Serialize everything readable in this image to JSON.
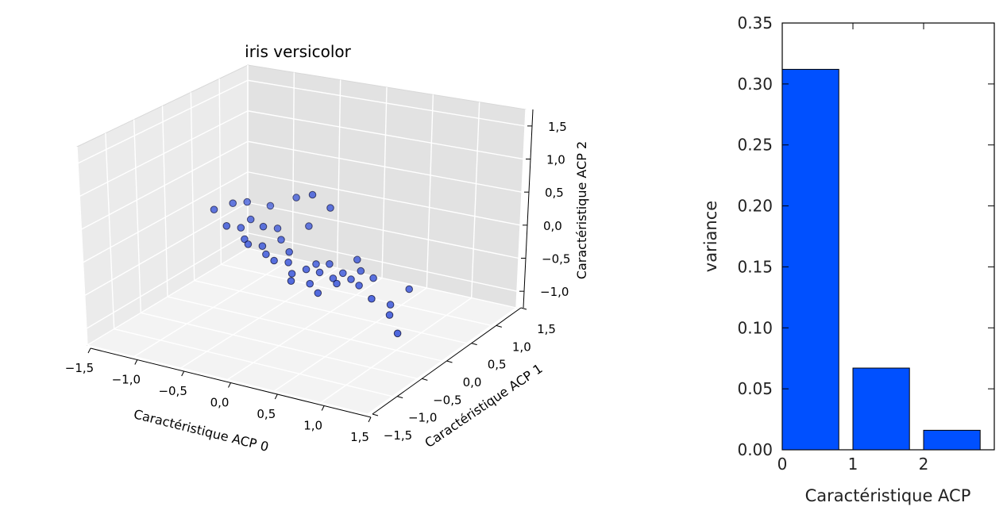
{
  "chart_data": [
    {
      "type": "scatter3d",
      "title": "iris versicolor",
      "xlabel": "Caractéristique ACP 0",
      "ylabel": "Caractéristique ACP 1",
      "zlabel": "Caractéristique ACP 2",
      "xlim": [
        -1.5,
        1.5
      ],
      "ylim": [
        -1.5,
        1.5
      ],
      "zlim": [
        -1.25,
        1.75
      ],
      "x_ticks": [
        "−1,5",
        "−1,0",
        "−0,5",
        "0,0",
        "0,5",
        "1,0",
        "1,5"
      ],
      "y_ticks": [
        "−1,5",
        "−1,0",
        "−0,5",
        "0,0",
        "0,5",
        "1,0",
        "1,5"
      ],
      "z_ticks": [
        "−1,0",
        "−0,5",
        "0,0",
        "0,5",
        "1,0",
        "1,5"
      ],
      "marker_color": "#1f3fd6",
      "grid": true,
      "points": [
        [
          -1.1,
          0.2,
          0.2
        ],
        [
          -0.95,
          0.3,
          0.3
        ],
        [
          -0.9,
          0.1,
          0.05
        ],
        [
          -0.85,
          0.4,
          0.3
        ],
        [
          -0.8,
          0.2,
          0.0
        ],
        [
          -0.75,
          0.3,
          0.1
        ],
        [
          -0.7,
          0.1,
          -0.1
        ],
        [
          -0.65,
          0.5,
          0.25
        ],
        [
          -0.6,
          0.0,
          -0.1
        ],
        [
          -0.55,
          0.2,
          0.1
        ],
        [
          -0.5,
          0.1,
          -0.15
        ],
        [
          -0.45,
          0.3,
          0.05
        ],
        [
          -0.4,
          0.0,
          -0.2
        ],
        [
          -0.35,
          0.2,
          -0.05
        ],
        [
          -0.3,
          0.4,
          0.55
        ],
        [
          -0.25,
          -0.1,
          -0.2
        ],
        [
          -0.2,
          0.1,
          -0.15
        ],
        [
          -0.15,
          0.0,
          -0.25
        ],
        [
          -0.1,
          0.3,
          0.2
        ],
        [
          -0.05,
          -0.1,
          -0.35
        ],
        [
          0.0,
          0.2,
          0.8
        ],
        [
          0.0,
          -0.2,
          -0.4
        ],
        [
          0.05,
          0.0,
          -0.3
        ],
        [
          0.1,
          0.1,
          -0.25
        ],
        [
          0.15,
          -0.1,
          -0.45
        ],
        [
          0.2,
          0.2,
          0.65
        ],
        [
          0.2,
          0.0,
          -0.3
        ],
        [
          0.25,
          0.1,
          -0.2
        ],
        [
          0.3,
          -0.2,
          -0.5
        ],
        [
          0.35,
          0.0,
          -0.35
        ],
        [
          0.4,
          0.1,
          -0.3
        ],
        [
          0.45,
          -0.1,
          -0.35
        ],
        [
          0.5,
          0.2,
          -0.1
        ],
        [
          0.55,
          0.0,
          -0.3
        ],
        [
          0.6,
          0.1,
          -0.2
        ],
        [
          0.7,
          -0.1,
          -0.3
        ],
        [
          0.8,
          0.0,
          -0.2
        ],
        [
          0.9,
          -0.2,
          -0.4
        ],
        [
          1.05,
          -0.1,
          -0.5
        ],
        [
          1.1,
          -0.2,
          -0.6
        ],
        [
          1.2,
          0.0,
          -0.25
        ],
        [
          1.25,
          -0.3,
          -0.8
        ]
      ]
    },
    {
      "type": "bar",
      "categories": [
        0,
        1,
        2
      ],
      "values": [
        0.312,
        0.067,
        0.016
      ],
      "xlabel": "Caractéristique ACP",
      "ylabel": "variance",
      "title": "",
      "ylim": [
        0,
        0.35
      ],
      "xlim": [
        0,
        3
      ],
      "y_ticks": [
        "0.00",
        "0.05",
        "0.10",
        "0.15",
        "0.20",
        "0.25",
        "0.30",
        "0.35"
      ],
      "x_ticks": [
        "0",
        "1",
        "2"
      ],
      "bar_color": "#0050ff",
      "grid": false
    }
  ]
}
